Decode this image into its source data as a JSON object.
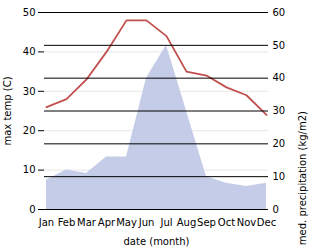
{
  "chart_data": {
    "type": "line",
    "categories": [
      "Jan",
      "Feb",
      "Mar",
      "Apr",
      "May",
      "Jun",
      "Jul",
      "Aug",
      "Sep",
      "Oct",
      "Nov",
      "Dec"
    ],
    "xlabel": "date (month)",
    "ylabel": "max temp (C)",
    "y2label": "med. precipitation (kg/m2)",
    "ylim": [
      0,
      50
    ],
    "yticks": [
      0,
      10,
      20,
      30,
      40,
      50
    ],
    "y2lim": [
      0,
      60
    ],
    "y2ticks": [
      0,
      10,
      20,
      30,
      40,
      50,
      60
    ],
    "grid": true,
    "series": [
      {
        "type": "area",
        "color": "#c5cce8",
        "axis": "y2",
        "values": [
          9,
          12,
          11,
          16,
          16,
          40,
          50,
          30,
          10,
          8,
          7,
          8
        ]
      },
      {
        "type": "line",
        "color": "#c0504d",
        "values": [
          26,
          28,
          33,
          40,
          48,
          48,
          44,
          35,
          34,
          31,
          29,
          24
        ]
      }
    ]
  }
}
